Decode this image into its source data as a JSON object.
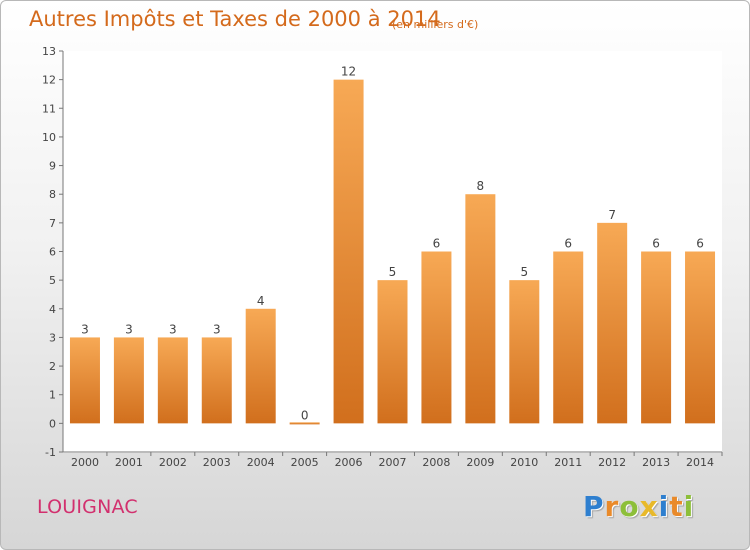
{
  "header": {
    "title": "Autres Impôts et Taxes de 2000 à 2014",
    "subtitle": "(en milliers d'€)"
  },
  "footer": {
    "place": "LOUIGNAC",
    "logo_letters": [
      {
        "char": "P",
        "color": "#2e7fcf"
      },
      {
        "char": "r",
        "color": "#e98a2a"
      },
      {
        "char": "o",
        "color": "#8dbf3a"
      },
      {
        "char": "x",
        "color": "#e8b92a"
      },
      {
        "char": "i",
        "color": "#2e7fcf"
      },
      {
        "char": "t",
        "color": "#e98a2a"
      },
      {
        "char": "i",
        "color": "#8dbf3a"
      }
    ]
  },
  "chart_data": {
    "type": "bar",
    "categories": [
      "2000",
      "2001",
      "2002",
      "2003",
      "2004",
      "2005",
      "2006",
      "2007",
      "2008",
      "2009",
      "2010",
      "2011",
      "2012",
      "2013",
      "2014"
    ],
    "values": [
      3,
      3,
      3,
      3,
      4,
      0,
      12,
      5,
      6,
      8,
      5,
      6,
      7,
      6,
      6
    ],
    "data_labels": [
      "3",
      "3",
      "3",
      "3",
      "4",
      "0",
      "12",
      "5",
      "6",
      "8",
      "5",
      "6",
      "7",
      "6",
      "6"
    ],
    "y_ticks": [
      -1,
      0,
      1,
      2,
      3,
      4,
      5,
      6,
      7,
      8,
      9,
      10,
      11,
      12,
      13
    ],
    "ylim": [
      -1,
      13
    ],
    "grid": false,
    "bar_color_light": "#f7a955",
    "bar_color_dark": "#d16f1d"
  }
}
